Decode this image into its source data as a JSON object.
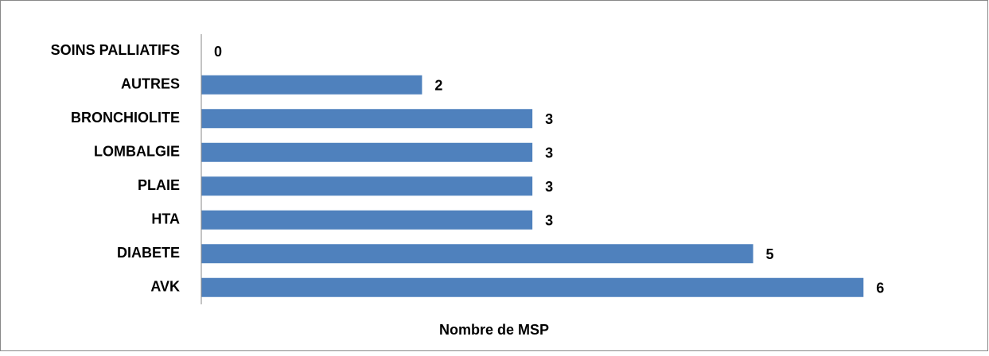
{
  "chart_data": {
    "type": "bar",
    "orientation": "horizontal",
    "categories": [
      "SOINS PALLIATIFS",
      "AUTRES",
      "BRONCHIOLITE",
      "LOMBALGIE",
      "PLAIE",
      "HTA",
      "DIABETE",
      "AVK"
    ],
    "values": [
      0,
      2,
      3,
      3,
      3,
      3,
      5,
      6
    ],
    "color": "#4f81bd",
    "xlabel": "Nombre de MSP",
    "xlim": [
      0,
      6.2
    ]
  }
}
